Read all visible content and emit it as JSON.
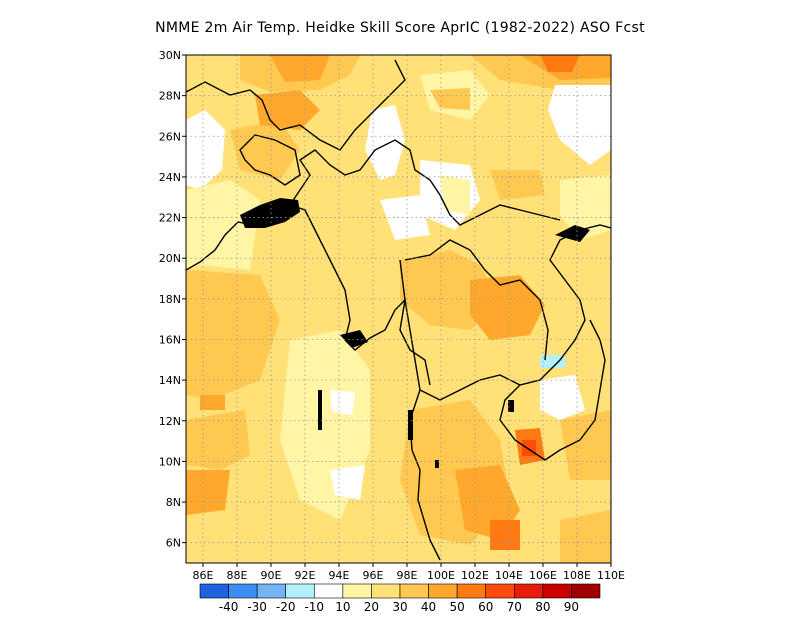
{
  "title": "NMME  2m Air Temp. Heidke Skill Score AprIC (1982-2022) ASO Fcst",
  "map": {
    "lon_range": [
      85,
      110
    ],
    "lat_range": [
      5,
      30
    ],
    "x_ticks": [
      {
        "lon": 86,
        "label": "86E"
      },
      {
        "lon": 88,
        "label": "88E"
      },
      {
        "lon": 90,
        "label": "90E"
      },
      {
        "lon": 92,
        "label": "92E"
      },
      {
        "lon": 94,
        "label": "94E"
      },
      {
        "lon": 96,
        "label": "96E"
      },
      {
        "lon": 98,
        "label": "98E"
      },
      {
        "lon": 100,
        "label": "100E"
      },
      {
        "lon": 102,
        "label": "102E"
      },
      {
        "lon": 104,
        "label": "104E"
      },
      {
        "lon": 106,
        "label": "106E"
      },
      {
        "lon": 108,
        "label": "108E"
      },
      {
        "lon": 110,
        "label": "110E"
      }
    ],
    "y_ticks": [
      {
        "lat": 6,
        "label": "6N"
      },
      {
        "lat": 8,
        "label": "8N"
      },
      {
        "lat": 10,
        "label": "10N"
      },
      {
        "lat": 12,
        "label": "12N"
      },
      {
        "lat": 14,
        "label": "14N"
      },
      {
        "lat": 16,
        "label": "16N"
      },
      {
        "lat": 18,
        "label": "18N"
      },
      {
        "lat": 20,
        "label": "20N"
      },
      {
        "lat": 22,
        "label": "22N"
      },
      {
        "lat": 24,
        "label": "24N"
      },
      {
        "lat": 26,
        "label": "26N"
      },
      {
        "lat": 28,
        "label": "28N"
      },
      {
        "lat": 30,
        "label": "30N"
      }
    ],
    "grid": true
  },
  "legend": {
    "colors": [
      "#1d63e0",
      "#3c8ff0",
      "#73b4f5",
      "#b4f0fa",
      "#ffffff",
      "#fff5a5",
      "#ffe178",
      "#ffc850",
      "#ffa82c",
      "#ff7a12",
      "#ff4c0c",
      "#e81c0c",
      "#c80000",
      "#a00000"
    ],
    "labels": [
      "-40",
      "-30",
      "-20",
      "-10",
      "10",
      "20",
      "30",
      "40",
      "50",
      "60",
      "70",
      "80",
      "90"
    ]
  }
}
